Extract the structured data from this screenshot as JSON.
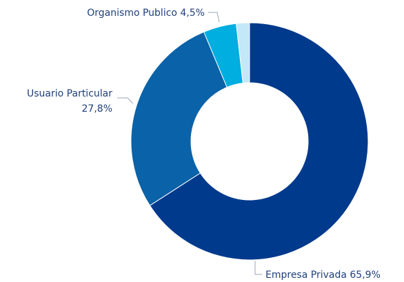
{
  "chart_data": {
    "type": "pie",
    "categories": [
      "Empresa Privada",
      "Usuario Particular",
      "Organismo Publico",
      null
    ],
    "values": [
      65.9,
      27.8,
      4.5,
      1.8
    ],
    "value_labels": [
      "65,9%",
      "27,8%",
      "4,5%",
      null
    ],
    "colors": [
      "#003a8c",
      "#0a62a8",
      "#00aee0",
      "#c3e8f8"
    ],
    "donut": true
  }
}
